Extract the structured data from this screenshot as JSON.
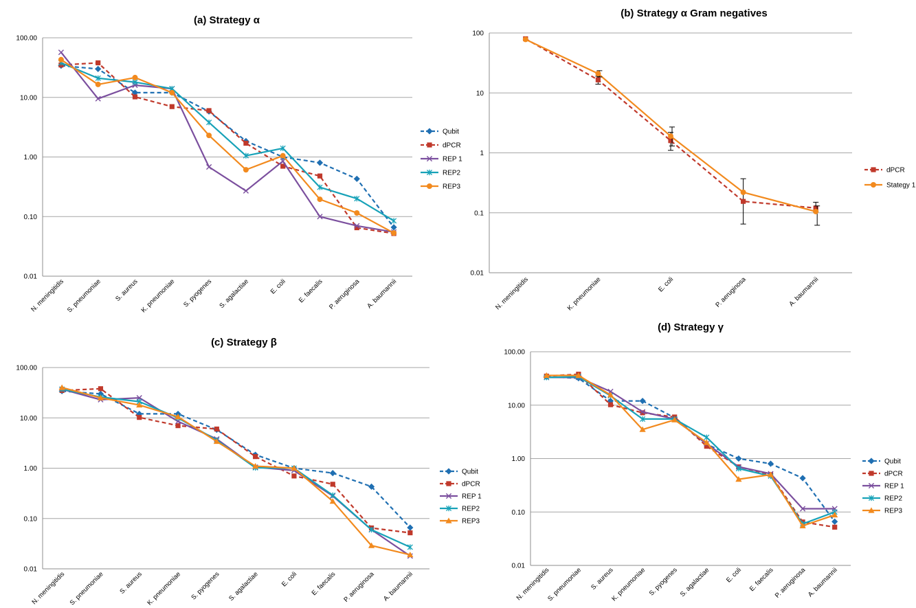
{
  "chart_data": [
    {
      "type": "line",
      "title": "(a) Strategy α",
      "y_scale": "log",
      "ylim": [
        0.01,
        100
      ],
      "y_tick_labels": [
        "100.00",
        "10.00",
        "1.00",
        "0.10",
        "0.01"
      ],
      "grid": true,
      "legend_position": "right",
      "categories": [
        "N. meningitidis",
        "S. pneumoniae",
        "S. aureus",
        "K. pneumoniae",
        "S. pyogenes",
        "S. agalactiae",
        "E. coli",
        "E. faecalis",
        "P. aeruginosa",
        "A. baumannii"
      ],
      "series": [
        {
          "name": "Qubit",
          "color": "#1f6fb2",
          "dash": true,
          "marker": "diamond",
          "values": [
            34,
            30,
            12,
            12,
            5.8,
            1.85,
            1.0,
            0.8,
            0.43,
            0.066
          ]
        },
        {
          "name": "dPCR",
          "color": "#c0392b",
          "dash": true,
          "marker": "square",
          "values": [
            35,
            38,
            10.2,
            7.0,
            6.0,
            1.7,
            0.7,
            0.48,
            0.065,
            0.052
          ]
        },
        {
          "name": "REP 1",
          "color": "#7b4f9e",
          "dash": false,
          "marker": "x",
          "values": [
            57,
            9.5,
            16,
            14,
            0.68,
            0.27,
            0.85,
            0.1,
            0.07,
            0.055
          ]
        },
        {
          "name": "REP2",
          "color": "#17a2b8",
          "dash": false,
          "marker": "star",
          "values": [
            38,
            21,
            18,
            14,
            3.8,
            1.05,
            1.4,
            0.31,
            0.2,
            0.085
          ]
        },
        {
          "name": "REP3",
          "color": "#f28a1e",
          "dash": false,
          "marker": "circle",
          "values": [
            43,
            16.5,
            21.5,
            12,
            2.3,
            0.61,
            1.05,
            0.195,
            0.115,
            0.053
          ]
        }
      ]
    },
    {
      "type": "line",
      "title": "(b) Strategy α Gram negatives",
      "y_scale": "log",
      "ylim": [
        0.01,
        100
      ],
      "y_tick_labels": [
        "100",
        "10",
        "1",
        "0.1",
        "0.01"
      ],
      "grid": true,
      "legend_position": "right",
      "categories": [
        "N. meningitidis",
        "K. pneumoniae",
        "E. coli",
        "P. aeruginosa",
        "A. baumannii"
      ],
      "series": [
        {
          "name": "dPCR",
          "color": "#c0392b",
          "dash": true,
          "marker": "square",
          "values": [
            80,
            16.5,
            1.6,
            0.155,
            0.12
          ],
          "err_low": [
            80,
            14,
            1.1,
            0.065,
            0.105
          ],
          "err_high": [
            80,
            19,
            2.2,
            0.37,
            0.15
          ]
        },
        {
          "name": "Stategy 1",
          "color": "#f28a1e",
          "dash": false,
          "marker": "circle",
          "values": [
            78,
            21,
            1.9,
            0.22,
            0.105
          ],
          "err_low": [
            78,
            18.5,
            1.3,
            0.22,
            0.062
          ],
          "err_high": [
            78,
            23.5,
            2.7,
            0.22,
            0.13
          ]
        }
      ]
    },
    {
      "type": "line",
      "title": "(c) Strategy β",
      "y_scale": "log",
      "ylim": [
        0.01,
        100
      ],
      "y_tick_labels": [
        "100.00",
        "10.00",
        "1.00",
        "0.10",
        "0.01"
      ],
      "grid": true,
      "legend_position": "right",
      "categories": [
        "N. meningitidis",
        "S. pneumoniae",
        "S. aureus",
        "K. pneumoniae",
        "S. pyogenes",
        "S. agalactiae",
        "E. coli",
        "E. faecalis",
        "P. aeruginosa",
        "A. baumannii"
      ],
      "series": [
        {
          "name": "Qubit",
          "color": "#1f6fb2",
          "dash": true,
          "marker": "diamond",
          "values": [
            34,
            30,
            12,
            12,
            5.8,
            1.85,
            1.0,
            0.8,
            0.43,
            0.066
          ]
        },
        {
          "name": "dPCR",
          "color": "#c0392b",
          "dash": true,
          "marker": "square",
          "values": [
            35,
            38,
            10.2,
            7.0,
            6.0,
            1.7,
            0.7,
            0.48,
            0.065,
            0.052
          ]
        },
        {
          "name": "REP 1",
          "color": "#7b4f9e",
          "dash": false,
          "marker": "x",
          "values": [
            37,
            23,
            25,
            8.5,
            3.8,
            1.05,
            0.9,
            0.28,
            0.06,
            0.018
          ]
        },
        {
          "name": "REP2",
          "color": "#17a2b8",
          "dash": false,
          "marker": "star",
          "values": [
            37,
            26,
            21,
            10,
            3.6,
            1.02,
            1.0,
            0.29,
            0.06,
            0.027
          ]
        },
        {
          "name": "REP3",
          "color": "#f28a1e",
          "dash": false,
          "marker": "triangle",
          "values": [
            40,
            25,
            18,
            10.5,
            3.4,
            1.1,
            1.0,
            0.22,
            0.029,
            0.019
          ]
        }
      ]
    },
    {
      "type": "line",
      "title": "(d) Strategy γ",
      "y_scale": "log",
      "ylim": [
        0.01,
        100
      ],
      "y_tick_labels": [
        "100.00",
        "10.00",
        "1.00",
        "0.10",
        "0.01"
      ],
      "grid": true,
      "legend_position": "right",
      "categories": [
        "N. meningitidis",
        "S. pneumoniae",
        "S. aureus",
        "K. pneumoniae",
        "S. pyogenes",
        "S. agalactiae",
        "E. coli",
        "E. faecalis",
        "P. aeruginosa",
        "A. baumannii"
      ],
      "series": [
        {
          "name": "Qubit",
          "color": "#1f6fb2",
          "dash": true,
          "marker": "diamond",
          "values": [
            34,
            32,
            12,
            12,
            5.8,
            1.85,
            1.0,
            0.8,
            0.43,
            0.066
          ]
        },
        {
          "name": "dPCR",
          "color": "#c0392b",
          "dash": true,
          "marker": "square",
          "values": [
            35,
            38,
            10.2,
            7.2,
            6.0,
            1.7,
            0.7,
            0.5,
            0.065,
            0.052
          ]
        },
        {
          "name": "REP 1",
          "color": "#7b4f9e",
          "dash": false,
          "marker": "x",
          "values": [
            33,
            33,
            18,
            7.5,
            5.5,
            1.9,
            0.7,
            0.52,
            0.115,
            0.115
          ]
        },
        {
          "name": "REP2",
          "color": "#17a2b8",
          "dash": false,
          "marker": "star",
          "values": [
            33,
            34,
            15,
            5.5,
            5.5,
            2.5,
            0.65,
            0.47,
            0.06,
            0.1
          ]
        },
        {
          "name": "REP3",
          "color": "#f28a1e",
          "dash": false,
          "marker": "triangle",
          "values": [
            36,
            36,
            15.5,
            3.5,
            5.3,
            2.0,
            0.41,
            0.5,
            0.055,
            0.088
          ]
        }
      ]
    }
  ]
}
